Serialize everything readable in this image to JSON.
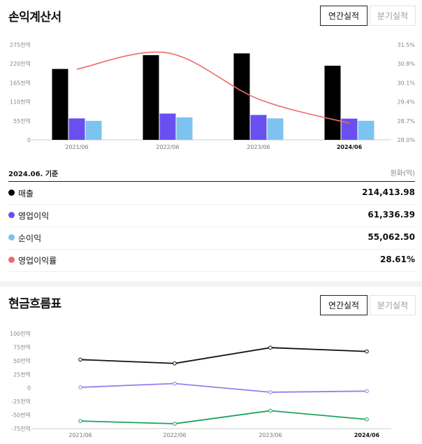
{
  "income": {
    "title": "손익계산서",
    "tab_annual": "연간실적",
    "tab_quarterly": "분기실적",
    "basis": "2024.06. 기준",
    "unit": "원화(억)",
    "y_ticks_left": [
      "275천억",
      "220천억",
      "165천억",
      "110천억",
      "55천억",
      "0"
    ],
    "y_ticks_right": [
      "31.5%",
      "30.8%",
      "30.1%",
      "29.4%",
      "28.7%",
      "28.0%"
    ],
    "rows": [
      {
        "label": "매출",
        "value": "214,413.98"
      },
      {
        "label": "영업이익",
        "value": "61,336.39"
      },
      {
        "label": "순이익",
        "value": "55,062.50"
      },
      {
        "label": "영업이익률",
        "value": "28.61%"
      }
    ]
  },
  "cashflow": {
    "title": "현금흐름표",
    "tab_annual": "연간실적",
    "tab_quarterly": "분기실적",
    "y_ticks": [
      "100천억",
      "75천억",
      "50천억",
      "25천억",
      "0",
      "-25천억",
      "-50천억",
      "-75천억"
    ]
  },
  "colors": {
    "revenue": "#000000",
    "op_income": "#6a4ff0",
    "net_income": "#7cc3f2",
    "op_margin": "#f06a6a",
    "cf_black": "#111111",
    "cf_purple": "#9b7cf0",
    "cf_green": "#1aa35e"
  },
  "chart_data": [
    {
      "type": "bar",
      "categories": [
        "2021/06",
        "2022/06",
        "2023/06",
        "2024/06"
      ],
      "ylim": [
        0,
        275
      ],
      "y2lim": [
        28.0,
        31.5
      ],
      "series": [
        {
          "name": "매출",
          "values": [
            205,
            245,
            250,
            214.41
          ]
        },
        {
          "name": "영업이익",
          "values": [
            62,
            76,
            72,
            61.34
          ]
        },
        {
          "name": "순이익",
          "values": [
            55,
            65,
            62,
            55.06
          ]
        },
        {
          "name": "영업이익률",
          "type": "line",
          "axis": "right",
          "values": [
            30.6,
            31.2,
            29.5,
            28.61
          ]
        }
      ]
    },
    {
      "type": "line",
      "categories": [
        "2021/06",
        "2022/06",
        "2023/06",
        "2024/06"
      ],
      "ylim": [
        -75,
        100
      ],
      "series": [
        {
          "values": [
            52,
            45,
            74,
            67
          ]
        },
        {
          "values": [
            1,
            8,
            -8,
            -6
          ]
        },
        {
          "values": [
            -61,
            -66,
            -42,
            -58
          ]
        }
      ]
    }
  ]
}
